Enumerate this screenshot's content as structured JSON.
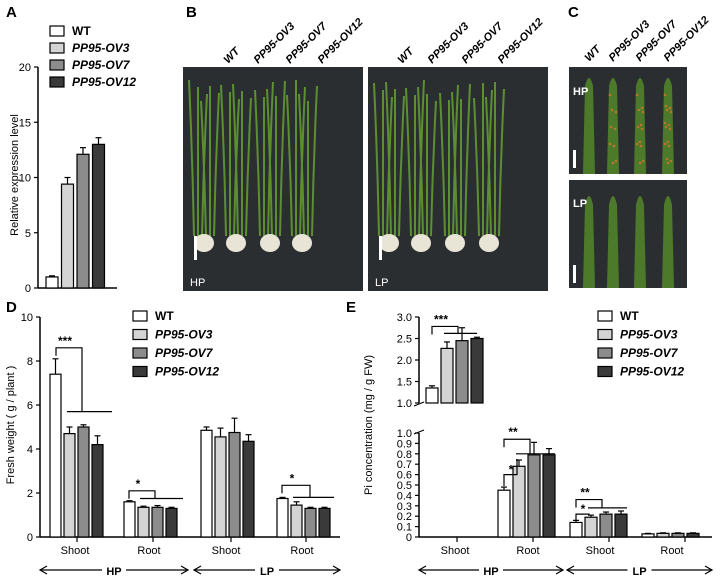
{
  "panels": {
    "A": "A",
    "B": "B",
    "C": "C",
    "D": "D",
    "E": "E"
  },
  "genotypes": [
    "WT",
    "PP95-OV3",
    "PP95-OV7",
    "PP95-OV12"
  ],
  "colors": {
    "WT": "#ffffff",
    "PP95-OV3": "#d4d4d4",
    "PP95-OV7": "#8c8c8c",
    "PP95-OV12": "#3a3a3a",
    "photo_bg": "#2b2e31",
    "leaf": "#4d7a2a"
  },
  "photo_B": {
    "labels": [
      "WT",
      "PP95-OV3",
      "PP95-OV7",
      "PP95-OV12"
    ],
    "left_condition": "HP",
    "right_condition": "LP"
  },
  "photo_C": {
    "labels": [
      "WT",
      "PP95-OV3",
      "PP95-OV7",
      "PP95-OV12"
    ],
    "top_condition": "HP",
    "bottom_condition": "LP"
  },
  "chart_data": [
    {
      "id": "A",
      "type": "bar",
      "categories": [
        "WT",
        "PP95-OV3",
        "PP95-OV7",
        "PP95-OV12"
      ],
      "values": [
        1.0,
        9.4,
        12.1,
        13.0
      ],
      "errors": [
        0.1,
        0.6,
        0.6,
        0.6
      ],
      "ylabel": "Relative expression level",
      "ylim": [
        0,
        20
      ],
      "yticks": [
        "0",
        "5",
        "10",
        "15",
        "20"
      ],
      "legend": [
        "WT",
        "PP95-OV3",
        "PP95-OV7",
        "PP95-OV12"
      ]
    },
    {
      "id": "D",
      "type": "bar",
      "categories": [
        "Shoot",
        "Root",
        "Shoot",
        "Root"
      ],
      "groups": [
        "HP",
        "LP"
      ],
      "series": [
        {
          "name": "WT",
          "values": [
            7.4,
            1.6,
            4.85,
            1.75
          ],
          "errors": [
            0.7,
            0.05,
            0.15,
            0.05
          ]
        },
        {
          "name": "PP95-OV3",
          "values": [
            4.7,
            1.35,
            4.55,
            1.45
          ],
          "errors": [
            0.3,
            0.05,
            0.4,
            0.15
          ]
        },
        {
          "name": "PP95-OV7",
          "values": [
            5.0,
            1.35,
            4.75,
            1.3
          ],
          "errors": [
            0.1,
            0.08,
            0.65,
            0.05
          ]
        },
        {
          "name": "PP95-OV12",
          "values": [
            4.2,
            1.3,
            4.35,
            1.3
          ],
          "errors": [
            0.4,
            0.05,
            0.3,
            0.05
          ]
        }
      ],
      "significance": [
        "***",
        "*",
        "",
        "*"
      ],
      "ylabel": "Fresh weight ( g / plant )",
      "ylim": [
        0,
        10
      ],
      "yticks": [
        "0",
        "2",
        "4",
        "6",
        "8",
        "10"
      ]
    },
    {
      "id": "E",
      "type": "bar",
      "categories": [
        "Shoot",
        "Root",
        "Shoot",
        "Root"
      ],
      "groups": [
        "HP",
        "LP"
      ],
      "series": [
        {
          "name": "WT",
          "values": [
            1.35,
            0.45,
            0.14,
            0.03
          ],
          "errors": [
            0.05,
            0.03,
            0.02,
            0.005
          ]
        },
        {
          "name": "PP95-OV3",
          "values": [
            2.27,
            0.68,
            0.19,
            0.035
          ],
          "errors": [
            0.15,
            0.06,
            0.02,
            0.005
          ]
        },
        {
          "name": "PP95-OV7",
          "values": [
            2.45,
            0.79,
            0.22,
            0.035
          ],
          "errors": [
            0.3,
            0.12,
            0.02,
            0.005
          ]
        },
        {
          "name": "PP95-OV12",
          "values": [
            2.5,
            0.79,
            0.22,
            0.035
          ],
          "errors": [
            0.03,
            0.06,
            0.03,
            0.005
          ]
        }
      ],
      "significance": [
        "***",
        "**",
        "**",
        ""
      ],
      "ylabel": "Pi concentration (mg / g FW)",
      "y_break": [
        1.0,
        1.1
      ],
      "yticks_lower": [
        "0",
        "0.1",
        "0.2",
        "0.3",
        "0.4",
        "0.5",
        "0.6",
        "0.7",
        "0.8",
        "0.9",
        "1.0"
      ],
      "yticks_upper": [
        "1.0",
        "1.5",
        "2.0",
        "2.5",
        "3.0"
      ]
    }
  ]
}
